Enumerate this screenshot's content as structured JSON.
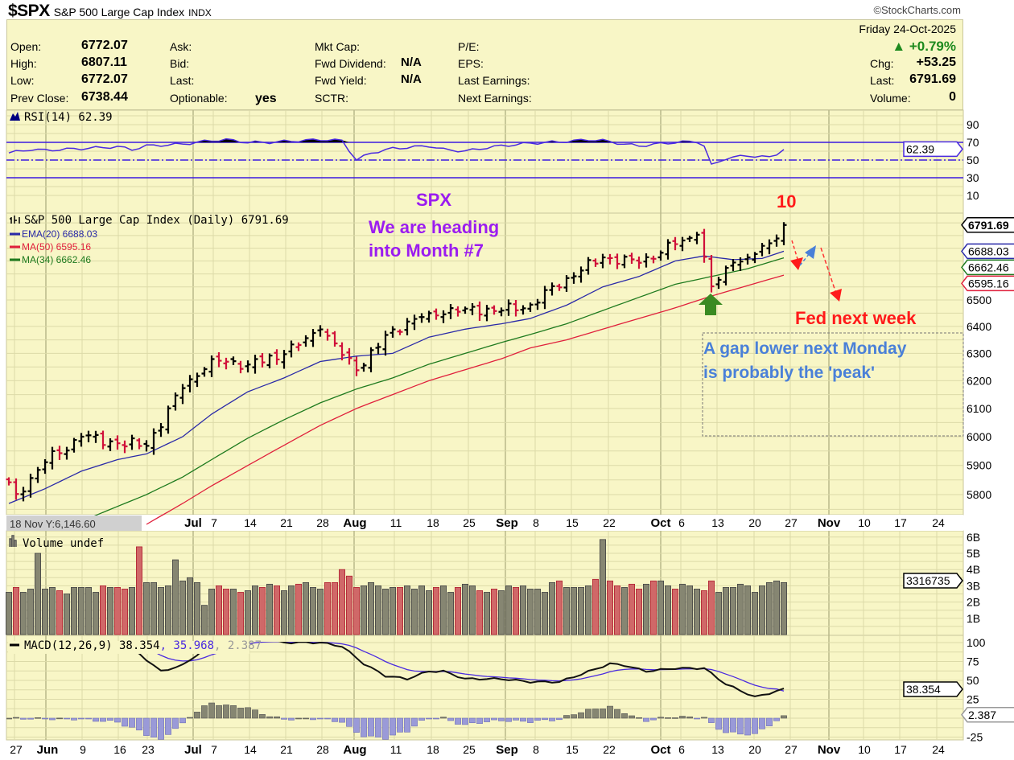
{
  "header": {
    "symbol": "$SPX",
    "name": "S&P 500 Large Cap Index",
    "exchange": "INDX",
    "brand": "©StockCharts.com"
  },
  "quote": {
    "date": "Friday  24-Oct-2025",
    "pct_change": "▲ +0.79%",
    "pct_color": "#1e8a1e",
    "open_label": "Open:",
    "open": "6772.07",
    "high_label": "High:",
    "high": "6807.11",
    "low_label": "Low:",
    "low": "6772.07",
    "prev_close_label": "Prev Close:",
    "prev_close": "6738.44",
    "ask_label": "Ask:",
    "bid_label": "Bid:",
    "last_label_mid": "Last:",
    "optionable_label": "Optionable:",
    "optionable": "yes",
    "mkt_cap_label": "Mkt Cap:",
    "fwd_dividend_label": "Fwd Dividend:",
    "fwd_dividend": "N/A",
    "fwd_yield_label": "Fwd Yield:",
    "fwd_yield": "N/A",
    "sctr_label": "SCTR:",
    "pe_label": "P/E:",
    "eps_label": "EPS:",
    "last_earnings_label": "Last Earnings:",
    "next_earnings_label": "Next Earnings:",
    "chg_label": "Chg:",
    "chg": "+53.25",
    "last_label": "Last:",
    "last": "6791.69",
    "volume_label": "Volume:",
    "volume": "0"
  },
  "chart_data": {
    "type": "ohlc",
    "title": "S&P 500 Large Cap Index (Daily) 6791.69",
    "bars": 108,
    "weekly_closes": [
      [
        0,
        5842
      ],
      [
        1,
        5802
      ],
      [
        5,
        5911
      ],
      [
        10,
        6000
      ],
      [
        15,
        5977
      ],
      [
        19,
        5968
      ],
      [
        24,
        6173
      ],
      [
        28,
        6279
      ],
      [
        33,
        6259
      ],
      [
        38,
        6297
      ],
      [
        43,
        6389
      ],
      [
        48,
        6238
      ],
      [
        53,
        6389
      ],
      [
        58,
        6450
      ],
      [
        63,
        6467
      ],
      [
        68,
        6460
      ],
      [
        72,
        6482
      ],
      [
        77,
        6584
      ],
      [
        82,
        6664
      ],
      [
        87,
        6643
      ],
      [
        92,
        6716
      ],
      [
        95,
        6753
      ],
      [
        97,
        6552
      ],
      [
        100,
        6644
      ],
      [
        102,
        6664
      ],
      [
        106,
        6738.44
      ],
      [
        107,
        6791.69
      ]
    ],
    "ema20": {
      "label": "EMA(20) 6688.03",
      "color": "#2a2aa8",
      "points": [
        [
          0,
          5770
        ],
        [
          5,
          5820
        ],
        [
          10,
          5880
        ],
        [
          15,
          5920
        ],
        [
          19,
          5940
        ],
        [
          24,
          6000
        ],
        [
          28,
          6080
        ],
        [
          33,
          6160
        ],
        [
          38,
          6210
        ],
        [
          43,
          6270
        ],
        [
          48,
          6290
        ],
        [
          53,
          6300
        ],
        [
          58,
          6360
        ],
        [
          63,
          6390
        ],
        [
          68,
          6410
        ],
        [
          72,
          6430
        ],
        [
          77,
          6480
        ],
        [
          82,
          6550
        ],
        [
          87,
          6590
        ],
        [
          92,
          6650
        ],
        [
          96,
          6670
        ],
        [
          100,
          6655
        ],
        [
          104,
          6660
        ],
        [
          107,
          6688.03
        ]
      ]
    },
    "ma50": {
      "label": "MA(50) 6595.16",
      "color": "#e0203c",
      "points": [
        [
          19,
          5700
        ],
        [
          24,
          5770
        ],
        [
          28,
          5830
        ],
        [
          33,
          5900
        ],
        [
          38,
          5970
        ],
        [
          43,
          6040
        ],
        [
          48,
          6100
        ],
        [
          53,
          6150
        ],
        [
          58,
          6200
        ],
        [
          63,
          6240
        ],
        [
          68,
          6280
        ],
        [
          72,
          6320
        ],
        [
          77,
          6350
        ],
        [
          82,
          6390
        ],
        [
          87,
          6430
        ],
        [
          92,
          6470
        ],
        [
          97,
          6515
        ],
        [
          102,
          6555
        ],
        [
          107,
          6595.16
        ]
      ]
    },
    "ma34": {
      "label": "MA(34) 6662.46",
      "color": "#1e7a1e",
      "points": [
        [
          9,
          5700
        ],
        [
          15,
          5760
        ],
        [
          19,
          5800
        ],
        [
          24,
          5860
        ],
        [
          28,
          5920
        ],
        [
          33,
          5995
        ],
        [
          38,
          6060
        ],
        [
          43,
          6120
        ],
        [
          48,
          6170
        ],
        [
          53,
          6210
        ],
        [
          58,
          6260
        ],
        [
          63,
          6300
        ],
        [
          68,
          6340
        ],
        [
          72,
          6370
        ],
        [
          77,
          6410
        ],
        [
          82,
          6460
        ],
        [
          87,
          6510
        ],
        [
          92,
          6560
        ],
        [
          97,
          6590
        ],
        [
          102,
          6620
        ],
        [
          107,
          6662.46
        ]
      ]
    },
    "price_axis": [
      "6500",
      "6400",
      "6300",
      "6200",
      "6100",
      "6000",
      "5900",
      "5800"
    ],
    "price_levels": [
      6500,
      6400,
      6300,
      6200,
      6100,
      6000,
      5900,
      5800
    ],
    "price_tags": [
      {
        "text": "6791.69",
        "value": 6791.69,
        "color": "#000000",
        "bold": true
      },
      {
        "text": "6662.46",
        "value": 6662.46,
        "color": "#1e7a1e"
      },
      {
        "text": "6688.03",
        "value": 6688.03,
        "color": "#2a2aa8"
      },
      {
        "text": "6595.16",
        "value": 6595.16,
        "color": "#e0203c"
      }
    ],
    "rsi": {
      "label": "RSI(14) 62.39",
      "value_tag": "62.39",
      "value": 62.39,
      "points": [
        [
          0,
          58
        ],
        [
          3,
          62
        ],
        [
          5,
          61
        ],
        [
          10,
          63
        ],
        [
          15,
          65
        ],
        [
          17,
          62
        ],
        [
          19,
          66
        ],
        [
          24,
          68
        ],
        [
          28,
          72
        ],
        [
          30,
          73
        ],
        [
          33,
          70
        ],
        [
          36,
          70
        ],
        [
          38,
          71
        ],
        [
          43,
          73
        ],
        [
          46,
          72
        ],
        [
          48,
          50
        ],
        [
          50,
          58
        ],
        [
          53,
          63
        ],
        [
          58,
          66
        ],
        [
          60,
          62
        ],
        [
          63,
          60
        ],
        [
          66,
          64
        ],
        [
          68,
          66
        ],
        [
          72,
          69
        ],
        [
          77,
          71
        ],
        [
          80,
          73
        ],
        [
          82,
          72
        ],
        [
          85,
          68
        ],
        [
          87,
          66
        ],
        [
          92,
          70
        ],
        [
          95,
          71
        ],
        [
          96,
          66
        ],
        [
          97,
          44
        ],
        [
          99,
          52
        ],
        [
          102,
          55
        ],
        [
          105,
          53
        ],
        [
          106,
          57
        ],
        [
          107,
          62.39
        ]
      ],
      "axis": [
        "90",
        "70",
        "50",
        "30",
        "10"
      ],
      "levels": [
        90,
        70,
        50,
        30,
        10
      ]
    },
    "volume": {
      "label": "Volume undef",
      "value_tag": "3316735",
      "values_billions": [
        2.6,
        2.9,
        2.6,
        2.8,
        5.0,
        2.8,
        2.9,
        2.7,
        2.5,
        2.9,
        2.9,
        2.9,
        2.6,
        3.0,
        2.9,
        2.9,
        2.8,
        2.9,
        5.4,
        3.2,
        3.2,
        2.9,
        3.0,
        4.6,
        3.3,
        3.5,
        3.2,
        1.8,
        2.8,
        3.0,
        2.8,
        2.8,
        2.6,
        2.7,
        3.0,
        2.9,
        3.1,
        3.0,
        2.7,
        3.0,
        3.1,
        3.2,
        2.9,
        2.8,
        3.2,
        3.2,
        4.0,
        3.6,
        2.9,
        3.0,
        3.2,
        3.0,
        2.8,
        2.9,
        2.9,
        3.0,
        2.8,
        3.0,
        2.7,
        2.9,
        3.0,
        2.6,
        2.9,
        3.1,
        3.0,
        2.7,
        2.6,
        2.8,
        2.7,
        3.0,
        2.9,
        3.0,
        2.8,
        2.8,
        2.6,
        3.2,
        3.3,
        2.9,
        2.9,
        2.9,
        3.0,
        3.4,
        5.85,
        3.3,
        3.0,
        2.9,
        3.1,
        2.8,
        3.1,
        3.3,
        3.3,
        3.0,
        2.8,
        3.1,
        3.0,
        2.8,
        2.7,
        3.3,
        2.6,
        2.9,
        2.9,
        3.1,
        3.0,
        2.6,
        3.0,
        3.2,
        3.3,
        3.2
      ],
      "axis": [
        "6B",
        "5B",
        "4B",
        "3B",
        "2B",
        "1B"
      ],
      "levels": [
        6,
        5,
        4,
        3,
        2,
        1
      ]
    },
    "macd": {
      "label": "MACD(12,26,9) 38.354",
      "signal_label": ", 35.968",
      "hist_label": ", 2.387",
      "value_tag": "38.354",
      "hist_tag": "2.387",
      "macd_value": 38.354,
      "signal_value": 35.968,
      "hist_value": 2.387,
      "points": [
        [
          0,
          108
        ],
        [
          10,
          106
        ],
        [
          15,
          100
        ],
        [
          18,
          85
        ],
        [
          21,
          62
        ],
        [
          24,
          70
        ],
        [
          28,
          98
        ],
        [
          33,
          108
        ],
        [
          38,
          100
        ],
        [
          43,
          100
        ],
        [
          46,
          95
        ],
        [
          49,
          72
        ],
        [
          52,
          56
        ],
        [
          55,
          52
        ],
        [
          58,
          62
        ],
        [
          60,
          62
        ],
        [
          63,
          52
        ],
        [
          68,
          52
        ],
        [
          72,
          48
        ],
        [
          76,
          48
        ],
        [
          79,
          58
        ],
        [
          83,
          72
        ],
        [
          85,
          70
        ],
        [
          88,
          62
        ],
        [
          92,
          66
        ],
        [
          96,
          66
        ],
        [
          99,
          45
        ],
        [
          103,
          28
        ],
        [
          105,
          33
        ],
        [
          107,
          38.354
        ]
      ],
      "axis": [
        "100",
        "75",
        "50",
        "25",
        "-25"
      ],
      "levels": [
        100,
        75,
        50,
        25,
        -25
      ]
    },
    "x_ticks": [
      "27",
      "Jun",
      "9",
      "16",
      "23",
      "Jul",
      "7",
      "14",
      "21",
      "28",
      "Aug",
      "11",
      "18",
      "25",
      "Sep",
      "8",
      "15",
      "22",
      "Oct",
      "6",
      "13",
      "20",
      "27",
      "Nov",
      "10",
      "17",
      "24"
    ],
    "x_tick_bold": [
      "Jun",
      "Jul",
      "Aug",
      "Sep",
      "Oct",
      "Nov"
    ],
    "crosshair_readout": "18 Nov Y:6,146.60"
  },
  "annotations": {
    "spx": "SPX",
    "heading_line1": "We are heading",
    "heading_line2": "into Month #7",
    "ten": "10",
    "fed": "Fed next week",
    "gap_line1": "A gap lower next Monday",
    "gap_line2": "is probably the 'peak'",
    "purple": "#9b1cf0",
    "red": "#ff1a1a",
    "blue": "#4a80d8",
    "green": "#3a8a22"
  }
}
